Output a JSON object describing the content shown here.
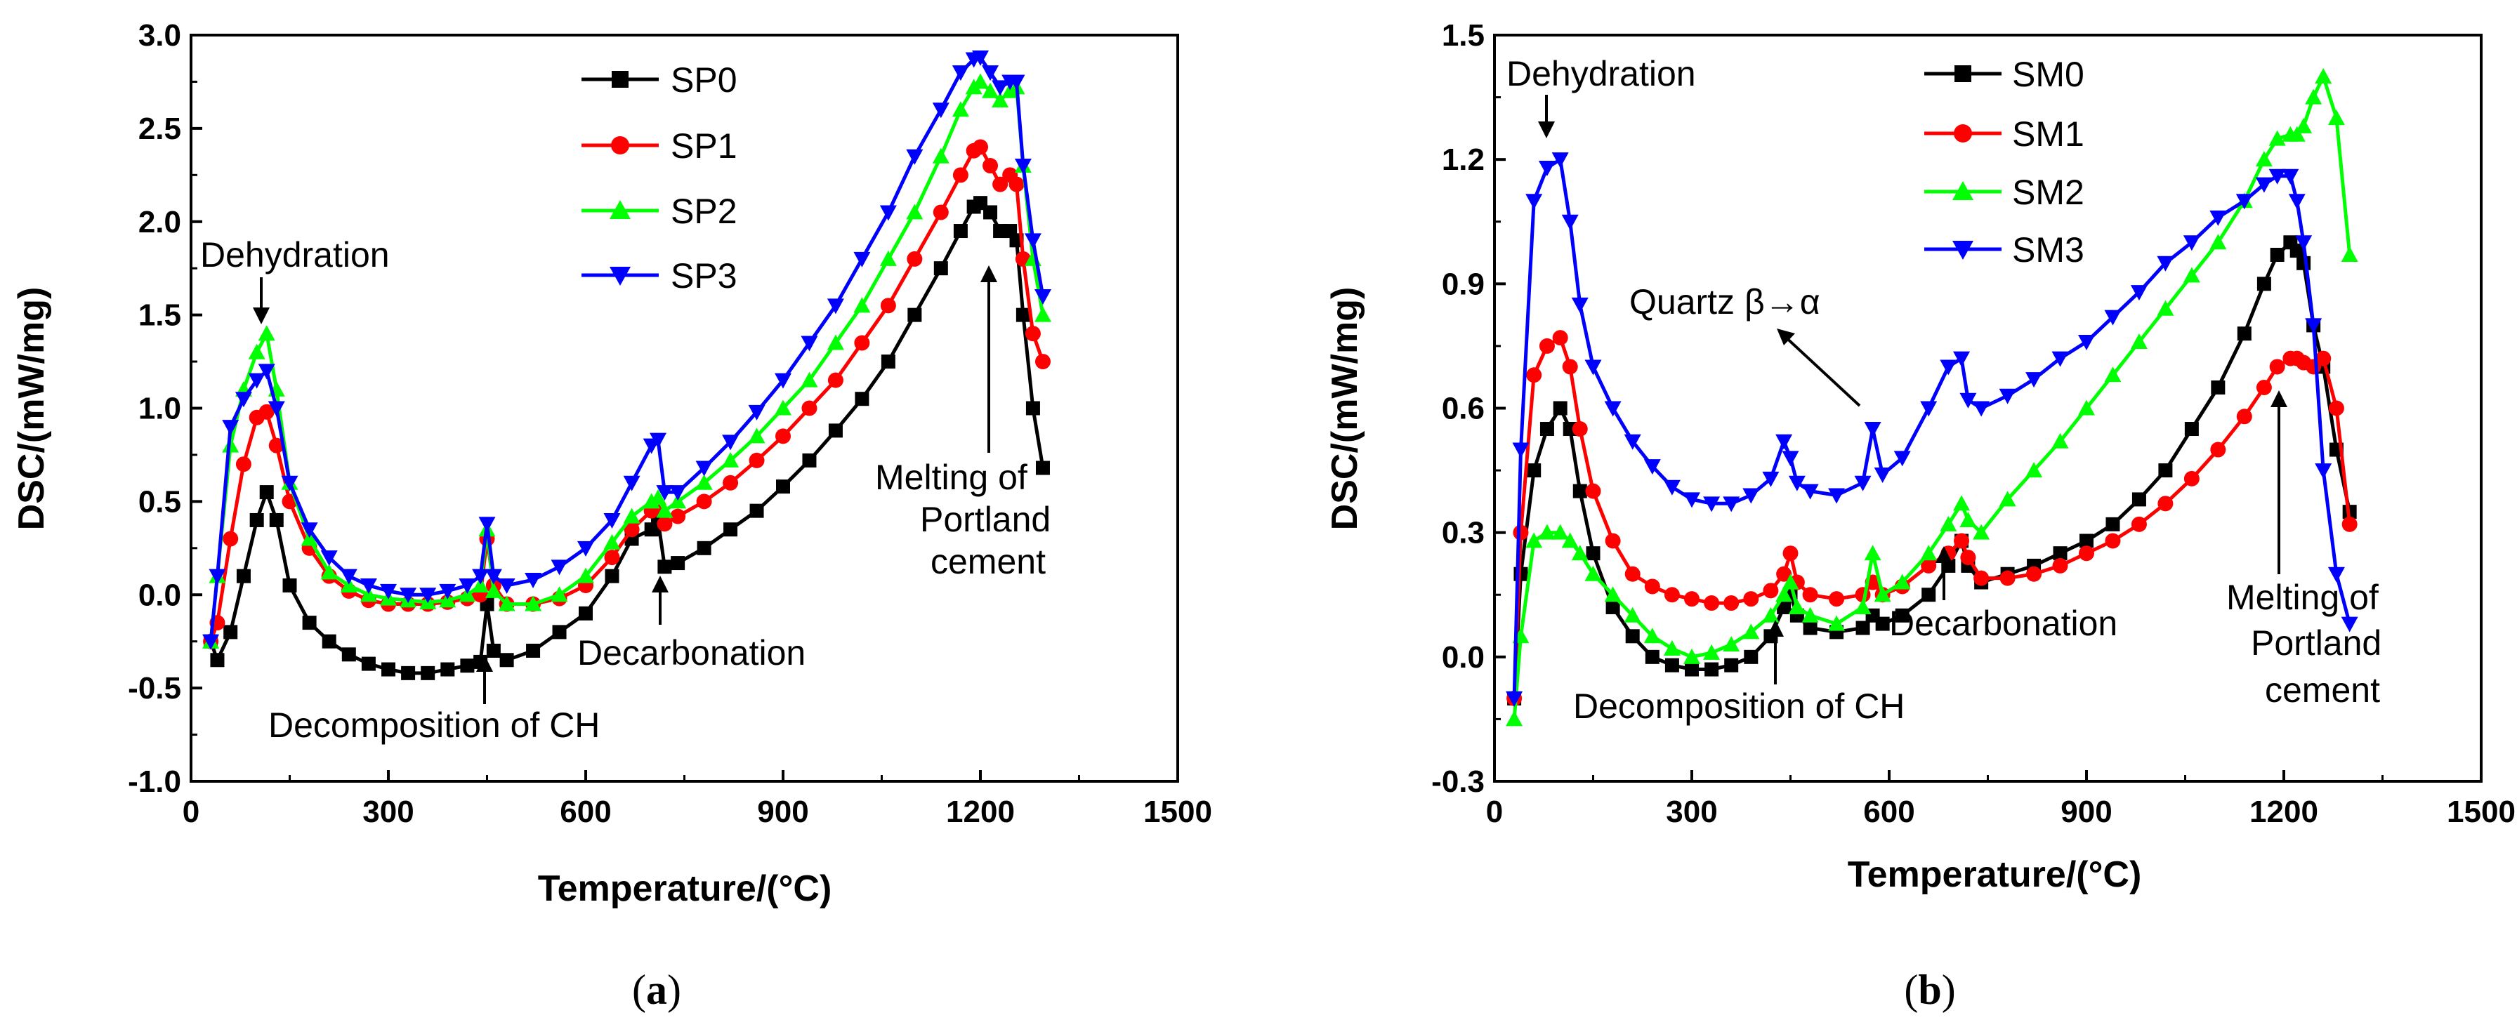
{
  "chart_data": [
    {
      "id": "a",
      "type": "line",
      "xlabel": "Temperature/(°C)",
      "ylabel": "DSC/(mW/mg)",
      "xlim": [
        0,
        1500
      ],
      "ylim": [
        -1.0,
        3.0
      ],
      "xticks": [
        "0",
        "300",
        "600",
        "900",
        "1200",
        "1500"
      ],
      "yticks": [
        "-1.0",
        "-0.5",
        "0.0",
        "0.5",
        "1.0",
        "1.5",
        "2.0",
        "2.5",
        "3.0"
      ],
      "caption_letter": "a",
      "legend_position": "top-center",
      "series": [
        {
          "name": "SP0",
          "color": "#000000",
          "marker": "square",
          "x": [
            30,
            40,
            60,
            80,
            100,
            115,
            130,
            150,
            180,
            210,
            240,
            270,
            300,
            330,
            360,
            390,
            420,
            440,
            450,
            460,
            480,
            520,
            560,
            600,
            640,
            670,
            700,
            710,
            720,
            740,
            780,
            820,
            860,
            900,
            940,
            980,
            1020,
            1060,
            1100,
            1140,
            1170,
            1190,
            1200,
            1215,
            1230,
            1245,
            1255,
            1265,
            1280,
            1295
          ],
          "y": [
            -0.25,
            -0.35,
            -0.2,
            0.1,
            0.4,
            0.55,
            0.4,
            0.05,
            -0.15,
            -0.25,
            -0.32,
            -0.37,
            -0.4,
            -0.42,
            -0.42,
            -0.4,
            -0.38,
            -0.36,
            -0.05,
            -0.3,
            -0.35,
            -0.3,
            -0.2,
            -0.1,
            0.1,
            0.3,
            0.35,
            0.4,
            0.15,
            0.17,
            0.25,
            0.35,
            0.45,
            0.58,
            0.72,
            0.88,
            1.05,
            1.25,
            1.5,
            1.75,
            1.95,
            2.08,
            2.1,
            2.05,
            1.95,
            1.95,
            1.9,
            1.5,
            1.0,
            0.68
          ]
        },
        {
          "name": "SP1",
          "color": "#ff0000",
          "marker": "circle",
          "x": [
            30,
            40,
            60,
            80,
            100,
            115,
            130,
            150,
            180,
            210,
            240,
            270,
            300,
            330,
            360,
            390,
            420,
            440,
            450,
            460,
            480,
            520,
            560,
            600,
            640,
            670,
            700,
            710,
            720,
            740,
            780,
            820,
            860,
            900,
            940,
            980,
            1020,
            1060,
            1100,
            1140,
            1170,
            1190,
            1200,
            1215,
            1230,
            1245,
            1255,
            1265,
            1280,
            1295
          ],
          "y": [
            -0.25,
            -0.15,
            0.3,
            0.7,
            0.95,
            0.98,
            0.8,
            0.5,
            0.25,
            0.1,
            0.02,
            -0.03,
            -0.05,
            -0.05,
            -0.05,
            -0.04,
            -0.02,
            0.0,
            0.3,
            0.05,
            -0.05,
            -0.05,
            -0.02,
            0.05,
            0.2,
            0.35,
            0.45,
            0.48,
            0.38,
            0.42,
            0.5,
            0.6,
            0.72,
            0.85,
            1.0,
            1.15,
            1.35,
            1.55,
            1.8,
            2.05,
            2.25,
            2.38,
            2.4,
            2.3,
            2.2,
            2.25,
            2.2,
            1.8,
            1.4,
            1.25
          ]
        },
        {
          "name": "SP2",
          "color": "#00ff00",
          "marker": "triangle-up",
          "x": [
            30,
            40,
            60,
            80,
            100,
            115,
            130,
            150,
            180,
            210,
            240,
            270,
            300,
            330,
            360,
            390,
            420,
            440,
            450,
            460,
            480,
            520,
            560,
            600,
            640,
            670,
            700,
            710,
            720,
            740,
            780,
            820,
            860,
            900,
            940,
            980,
            1020,
            1060,
            1100,
            1140,
            1170,
            1190,
            1200,
            1215,
            1230,
            1245,
            1255,
            1265,
            1280,
            1295
          ],
          "y": [
            -0.25,
            0.1,
            0.8,
            1.1,
            1.3,
            1.4,
            1.1,
            0.6,
            0.3,
            0.12,
            0.05,
            0.0,
            -0.02,
            -0.03,
            -0.04,
            -0.03,
            0.0,
            0.05,
            0.35,
            0.02,
            -0.05,
            -0.05,
            0.0,
            0.1,
            0.28,
            0.42,
            0.5,
            0.52,
            0.45,
            0.5,
            0.6,
            0.72,
            0.85,
            1.0,
            1.15,
            1.35,
            1.55,
            1.8,
            2.05,
            2.35,
            2.6,
            2.72,
            2.75,
            2.7,
            2.65,
            2.7,
            2.72,
            2.3,
            1.8,
            1.5
          ]
        },
        {
          "name": "SP3",
          "color": "#0000ff",
          "marker": "triangle-down",
          "x": [
            30,
            40,
            60,
            80,
            100,
            115,
            130,
            150,
            180,
            210,
            240,
            270,
            300,
            330,
            360,
            390,
            420,
            440,
            450,
            460,
            480,
            520,
            560,
            600,
            640,
            670,
            700,
            710,
            720,
            740,
            780,
            820,
            860,
            900,
            940,
            980,
            1020,
            1060,
            1100,
            1140,
            1170,
            1190,
            1200,
            1215,
            1230,
            1245,
            1255,
            1265,
            1280,
            1295
          ],
          "y": [
            -0.25,
            0.1,
            0.9,
            1.05,
            1.15,
            1.2,
            1.0,
            0.6,
            0.35,
            0.2,
            0.1,
            0.05,
            0.02,
            0.0,
            0.0,
            0.02,
            0.05,
            0.1,
            0.38,
            0.1,
            0.05,
            0.08,
            0.15,
            0.25,
            0.4,
            0.6,
            0.8,
            0.83,
            0.55,
            0.55,
            0.68,
            0.82,
            0.98,
            1.15,
            1.35,
            1.55,
            1.8,
            2.05,
            2.35,
            2.6,
            2.8,
            2.87,
            2.88,
            2.8,
            2.72,
            2.75,
            2.75,
            2.3,
            1.9,
            1.6
          ]
        }
      ],
      "annotations": [
        {
          "text": "Dehydration"
        },
        {
          "text": "Decomposition of CH"
        },
        {
          "text": "Decarbonation"
        },
        {
          "lines": [
            "Melting of",
            "Portland",
            "cement"
          ]
        }
      ]
    },
    {
      "id": "b",
      "type": "line",
      "xlabel": "Temperature/(°C)",
      "ylabel": "DSC/(mW/mg)",
      "xlim": [
        0,
        1500
      ],
      "ylim": [
        -0.3,
        1.5
      ],
      "xticks": [
        "0",
        "300",
        "600",
        "900",
        "1200",
        "1500"
      ],
      "yticks": [
        "-0.3",
        "0.0",
        "0.3",
        "0.6",
        "0.9",
        "1.2",
        "1.5"
      ],
      "caption_letter": "b",
      "legend_position": "top-center",
      "series": [
        {
          "name": "SM0",
          "color": "#000000",
          "marker": "square",
          "x": [
            30,
            40,
            60,
            80,
            100,
            115,
            130,
            150,
            180,
            210,
            240,
            270,
            300,
            330,
            360,
            390,
            420,
            440,
            450,
            460,
            480,
            520,
            560,
            575,
            590,
            620,
            660,
            690,
            710,
            720,
            740,
            780,
            820,
            860,
            900,
            940,
            980,
            1020,
            1060,
            1100,
            1140,
            1170,
            1190,
            1210,
            1220,
            1230,
            1245,
            1260,
            1280,
            1300
          ],
          "y": [
            -0.1,
            0.2,
            0.45,
            0.55,
            0.6,
            0.55,
            0.4,
            0.25,
            0.12,
            0.05,
            0.0,
            -0.02,
            -0.03,
            -0.03,
            -0.02,
            0.0,
            0.05,
            0.12,
            0.15,
            0.1,
            0.07,
            0.06,
            0.07,
            0.1,
            0.08,
            0.1,
            0.15,
            0.22,
            0.28,
            0.22,
            0.18,
            0.2,
            0.22,
            0.25,
            0.28,
            0.32,
            0.38,
            0.45,
            0.55,
            0.65,
            0.78,
            0.9,
            0.97,
            1.0,
            0.98,
            0.95,
            0.8,
            0.7,
            0.5,
            0.35
          ]
        },
        {
          "name": "SM1",
          "color": "#ff0000",
          "marker": "circle",
          "x": [
            30,
            40,
            60,
            80,
            100,
            115,
            130,
            150,
            180,
            210,
            240,
            270,
            300,
            330,
            360,
            390,
            420,
            440,
            450,
            460,
            480,
            520,
            560,
            575,
            590,
            620,
            660,
            690,
            710,
            720,
            740,
            780,
            820,
            860,
            900,
            940,
            980,
            1020,
            1060,
            1100,
            1140,
            1170,
            1190,
            1210,
            1220,
            1230,
            1245,
            1260,
            1280,
            1300
          ],
          "y": [
            -0.1,
            0.3,
            0.68,
            0.75,
            0.77,
            0.7,
            0.55,
            0.4,
            0.28,
            0.2,
            0.17,
            0.15,
            0.14,
            0.13,
            0.13,
            0.14,
            0.16,
            0.2,
            0.25,
            0.18,
            0.15,
            0.14,
            0.15,
            0.18,
            0.15,
            0.17,
            0.22,
            0.25,
            0.28,
            0.24,
            0.19,
            0.19,
            0.2,
            0.22,
            0.25,
            0.28,
            0.32,
            0.37,
            0.43,
            0.5,
            0.58,
            0.65,
            0.7,
            0.72,
            0.72,
            0.71,
            0.7,
            0.72,
            0.6,
            0.32
          ]
        },
        {
          "name": "SM2",
          "color": "#00ff00",
          "marker": "triangle-up",
          "x": [
            30,
            40,
            60,
            80,
            100,
            115,
            130,
            150,
            180,
            210,
            240,
            270,
            300,
            330,
            360,
            390,
            420,
            440,
            450,
            460,
            480,
            520,
            560,
            575,
            590,
            620,
            660,
            690,
            710,
            720,
            740,
            780,
            820,
            860,
            900,
            940,
            980,
            1020,
            1060,
            1100,
            1140,
            1170,
            1190,
            1210,
            1220,
            1230,
            1245,
            1260,
            1280,
            1300
          ],
          "y": [
            -0.15,
            0.05,
            0.28,
            0.3,
            0.3,
            0.28,
            0.25,
            0.2,
            0.15,
            0.1,
            0.05,
            0.02,
            0.0,
            0.01,
            0.03,
            0.06,
            0.1,
            0.15,
            0.18,
            0.12,
            0.1,
            0.08,
            0.12,
            0.25,
            0.15,
            0.18,
            0.25,
            0.32,
            0.37,
            0.33,
            0.3,
            0.38,
            0.45,
            0.52,
            0.6,
            0.68,
            0.76,
            0.84,
            0.92,
            1.0,
            1.1,
            1.2,
            1.25,
            1.26,
            1.26,
            1.28,
            1.35,
            1.4,
            1.3,
            0.97
          ]
        },
        {
          "name": "SM3",
          "color": "#0000ff",
          "marker": "triangle-down",
          "x": [
            30,
            40,
            60,
            80,
            100,
            115,
            130,
            150,
            180,
            210,
            240,
            270,
            300,
            330,
            360,
            390,
            420,
            440,
            450,
            460,
            480,
            520,
            560,
            575,
            590,
            620,
            660,
            690,
            710,
            720,
            740,
            780,
            820,
            860,
            900,
            940,
            980,
            1020,
            1060,
            1100,
            1140,
            1170,
            1190,
            1210,
            1220,
            1230,
            1245,
            1260,
            1280,
            1300
          ],
          "y": [
            -0.1,
            0.5,
            1.1,
            1.18,
            1.2,
            1.05,
            0.85,
            0.7,
            0.6,
            0.52,
            0.46,
            0.41,
            0.38,
            0.37,
            0.37,
            0.39,
            0.43,
            0.52,
            0.48,
            0.42,
            0.4,
            0.39,
            0.42,
            0.55,
            0.44,
            0.48,
            0.6,
            0.7,
            0.72,
            0.62,
            0.6,
            0.63,
            0.67,
            0.72,
            0.76,
            0.82,
            0.88,
            0.95,
            1.0,
            1.06,
            1.1,
            1.14,
            1.16,
            1.16,
            1.1,
            1.0,
            0.8,
            0.45,
            0.2,
            0.08
          ]
        }
      ],
      "annotations": [
        {
          "text": "Dehydration"
        },
        {
          "text": "Quartz β→α"
        },
        {
          "text": "Decomposition of CH"
        },
        {
          "text": "Decarbonation"
        },
        {
          "lines": [
            "Melting of",
            "Portland",
            "cement"
          ]
        }
      ]
    }
  ]
}
